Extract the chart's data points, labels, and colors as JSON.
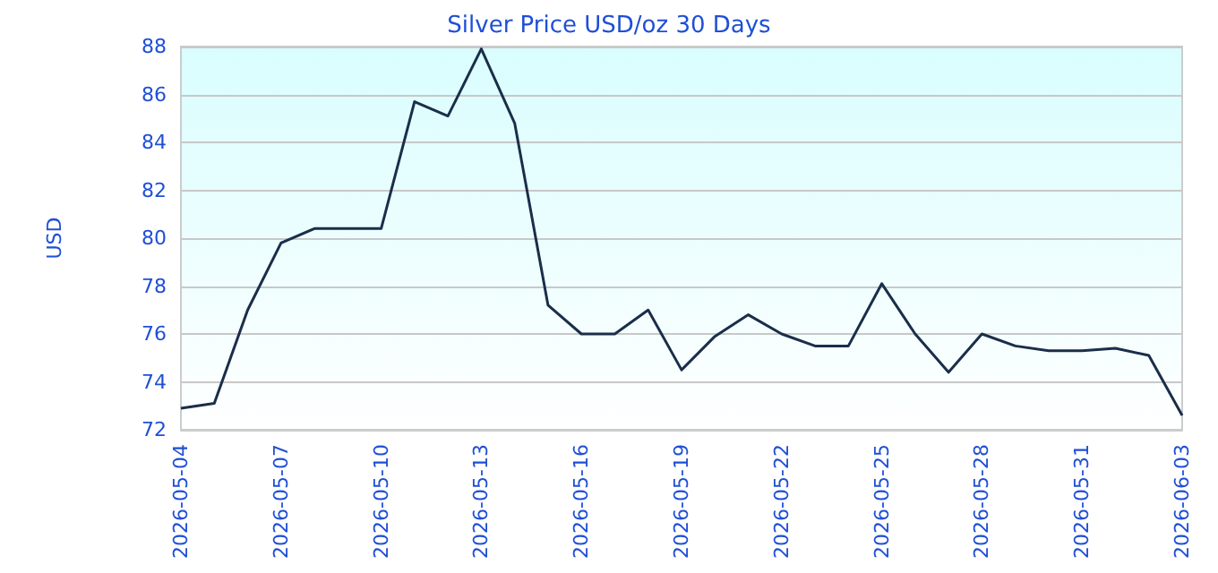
{
  "chart_data": {
    "type": "line",
    "title": "Silver Price USD/oz 30 Days",
    "ylabel": "USD",
    "categories": [
      "2026-05-04",
      null,
      null,
      "2026-05-07",
      null,
      null,
      "2026-05-10",
      null,
      null,
      "2026-05-13",
      null,
      null,
      "2026-05-16",
      null,
      null,
      "2026-05-19",
      null,
      null,
      "2026-05-22",
      null,
      null,
      "2026-05-25",
      null,
      null,
      "2026-05-28",
      null,
      null,
      "2026-05-31",
      null,
      null,
      "2026-06-03"
    ],
    "series": [
      {
        "color": "#1a2e4a",
        "values": [
          72.9,
          73.1,
          77.0,
          79.8,
          80.4,
          80.4,
          80.4,
          85.7,
          85.1,
          87.9,
          84.8,
          77.2,
          76.0,
          76.0,
          77.0,
          74.5,
          75.9,
          76.8,
          76.0,
          75.5,
          75.5,
          78.1,
          76.0,
          74.4,
          76.0,
          75.5,
          75.3,
          75.3,
          75.4,
          75.1,
          72.6
        ]
      }
    ],
    "ylim": [
      72,
      88
    ],
    "yticks": [
      72,
      74,
      76,
      78,
      80,
      82,
      84,
      86,
      88
    ],
    "grid": "y",
    "marker": "none",
    "line_style": "solid"
  }
}
